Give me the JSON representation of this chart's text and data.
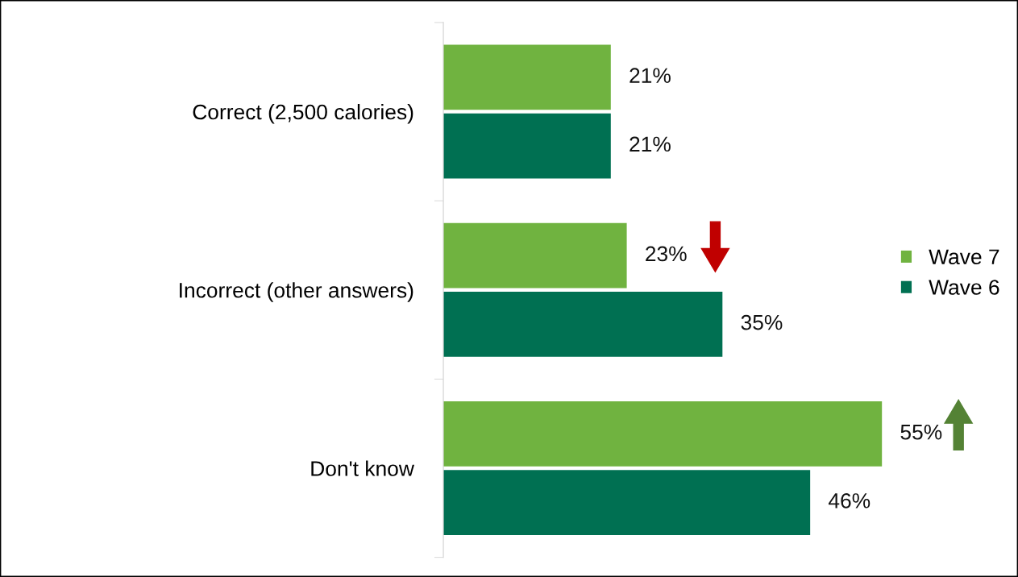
{
  "chart_data": {
    "type": "bar",
    "orientation": "horizontal",
    "categories": [
      "Correct (2,500 calories)",
      "Incorrect (other answers)",
      "Don't know"
    ],
    "series": [
      {
        "name": "Wave 7",
        "color": "#70b340",
        "values": [
          21,
          23,
          55
        ],
        "value_labels": [
          "21%",
          "23%",
          "55%"
        ]
      },
      {
        "name": "Wave 6",
        "color": "#007052",
        "values": [
          21,
          35,
          46
        ],
        "value_labels": [
          "21%",
          "35%",
          "46%"
        ]
      }
    ],
    "legend": "right",
    "grid": false
  }
}
